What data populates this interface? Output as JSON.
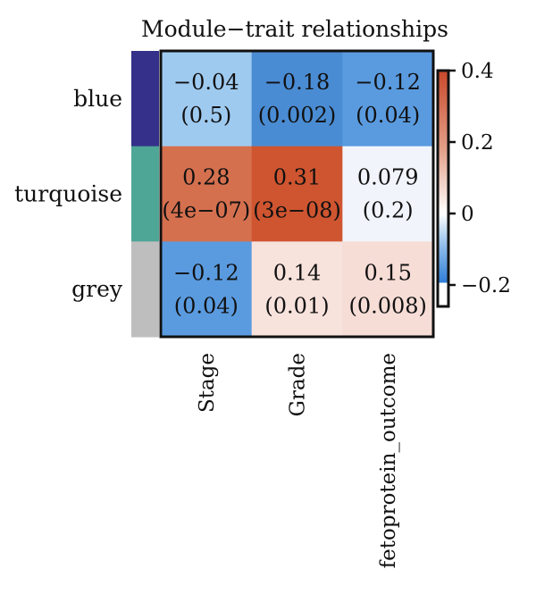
{
  "chart_data": {
    "type": "heatmap",
    "title": "Module−trait relationships",
    "rows": [
      "blue",
      "turquoise",
      "grey"
    ],
    "row_colors": [
      "#35308a",
      "#4ea697",
      "#bebebe"
    ],
    "columns": [
      "Stage",
      "Grade",
      "fetoprotein_outcome"
    ],
    "values": [
      [
        -0.04,
        -0.18,
        -0.12
      ],
      [
        0.28,
        0.31,
        0.079
      ],
      [
        -0.12,
        0.14,
        0.15
      ]
    ],
    "cells": [
      [
        {
          "r": "−0.04",
          "p": "(0.5)"
        },
        {
          "r": "−0.18",
          "p": "(0.002)"
        },
        {
          "r": "−0.12",
          "p": "(0.04)"
        }
      ],
      [
        {
          "r": "0.28",
          "p": "(4e−07)"
        },
        {
          "r": "0.31",
          "p": "(3e−08)"
        },
        {
          "r": "0.079",
          "p": "(0.2)"
        }
      ],
      [
        {
          "r": "−0.12",
          "p": "(0.04)"
        },
        {
          "r": "0.14",
          "p": "(0.01)"
        },
        {
          "r": "0.15",
          "p": "(0.008)"
        }
      ]
    ],
    "colorbar": {
      "range": [
        -0.26,
        0.4
      ],
      "ticks": [
        0.4,
        0.2,
        0,
        -0.2
      ],
      "tick_labels": [
        "0.4",
        "0.2",
        "0",
        "−0.2"
      ],
      "low_color": "#2f7ed8",
      "mid_color": "#ffffff",
      "high_color": "#c9482a"
    },
    "cell_colors": [
      [
        "#9fcaf0",
        "#4a8cd3",
        "#5a9be0"
      ],
      [
        "#d5704f",
        "#cf5530",
        "#f1f5fb"
      ],
      [
        "#5a9be0",
        "#f8e2dc",
        "#f6ddd6"
      ]
    ]
  }
}
